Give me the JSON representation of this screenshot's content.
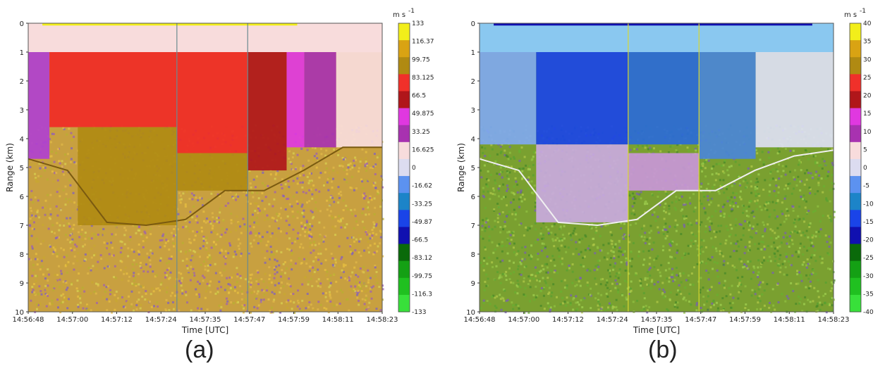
{
  "chart_data": [
    {
      "type": "heatmap",
      "caption": "(a)",
      "xlabel": "Time [UTC]",
      "ylabel": "Range (km)",
      "x_ticks": [
        "14:56:48",
        "14:57:00",
        "14:57:12",
        "14:57:24",
        "14:57:35",
        "14:57:47",
        "14:57:59",
        "14:58:11",
        "14:58:23"
      ],
      "y_ticks": [
        "0",
        "1",
        "2",
        "3",
        "4",
        "5",
        "6",
        "7",
        "8",
        "9",
        "10"
      ],
      "ylim": [
        10,
        0
      ],
      "colorbar": {
        "unit": "m s",
        "unit_exp": "-1",
        "labels": [
          "133",
          "116.37",
          "99.75",
          "83.125",
          "66.5",
          "49.875",
          "33.25",
          "16.625",
          "0",
          "-16.62",
          "-33.25",
          "-49.87",
          "-66.5",
          "-83.12",
          "-99.75",
          "-116.3",
          "-133"
        ],
        "colors": [
          "#f2ee1a",
          "#d9a313",
          "#b08a12",
          "#f0302a",
          "#b0161a",
          "#e038e0",
          "#a832b0",
          "#f8dcdc",
          "#dcdcf0",
          "#5c92f0",
          "#1c84c8",
          "#1a44e8",
          "#1010b0",
          "#0a6a0a",
          "#14a014",
          "#20c020",
          "#38e03a"
        ]
      },
      "regions": [
        {
          "t0": 0.0,
          "t1": 0.06,
          "r0": 1.0,
          "r1": 4.7,
          "color": "#b040d0"
        },
        {
          "t0": 0.06,
          "t1": 0.42,
          "r0": 1.0,
          "r1": 3.6,
          "color": "#f02a26"
        },
        {
          "t0": 0.14,
          "t1": 0.42,
          "r0": 3.6,
          "r1": 7.0,
          "color": "#b08a12"
        },
        {
          "t0": 0.42,
          "t1": 0.62,
          "r0": 1.0,
          "r1": 4.5,
          "color": "#f02a26"
        },
        {
          "t0": 0.42,
          "t1": 0.62,
          "r0": 4.5,
          "r1": 5.8,
          "color": "#b08a12"
        },
        {
          "t0": 0.62,
          "t1": 0.73,
          "r0": 1.0,
          "r1": 5.1,
          "color": "#b0161a"
        },
        {
          "t0": 0.73,
          "t1": 0.78,
          "r0": 1.0,
          "r1": 4.3,
          "color": "#e038e0"
        },
        {
          "t0": 0.78,
          "t1": 0.87,
          "r0": 1.0,
          "r1": 4.3,
          "color": "#a832b0"
        },
        {
          "t0": 0.87,
          "t1": 1.0,
          "r0": 1.0,
          "r1": 4.3,
          "color": "#f8dcdc"
        }
      ],
      "cloud_base_km": [
        4.7,
        5.1,
        6.9,
        7.0,
        6.8,
        5.8,
        5.8,
        5.1,
        4.3,
        4.3
      ]
    },
    {
      "type": "heatmap",
      "caption": "(b)",
      "xlabel": "Time [UTC]",
      "ylabel": "Range (km)",
      "x_ticks": [
        "14:56:48",
        "14:57:00",
        "14:57:12",
        "14:57:24",
        "14:57:35",
        "14:57:47",
        "14:57:59",
        "14:58:11",
        "14:58:23"
      ],
      "y_ticks": [
        "0",
        "1",
        "2",
        "3",
        "4",
        "5",
        "6",
        "7",
        "8",
        "9",
        "10"
      ],
      "ylim": [
        10,
        0
      ],
      "colorbar": {
        "unit": "m s",
        "unit_exp": "-1",
        "labels": [
          "40",
          "35",
          "30",
          "25",
          "20",
          "15",
          "10",
          "5",
          "0",
          "-5",
          "-10",
          "-15",
          "-20",
          "-25",
          "-30",
          "-35",
          "-40"
        ],
        "colors": [
          "#f2ee1a",
          "#d9a313",
          "#b08a12",
          "#f0302a",
          "#b0161a",
          "#e038e0",
          "#a832b0",
          "#f8dcdc",
          "#dcdcf0",
          "#5c92f0",
          "#1c84c8",
          "#1a44e8",
          "#1010b0",
          "#0a6a0a",
          "#14a014",
          "#20c020",
          "#38e03a"
        ]
      },
      "regions": [
        {
          "t0": 0.0,
          "t1": 0.16,
          "r0": 1.0,
          "r1": 4.2,
          "color": "#7fa8f0"
        },
        {
          "t0": 0.16,
          "t1": 0.42,
          "r0": 1.0,
          "r1": 4.2,
          "color": "#1a44e8"
        },
        {
          "t0": 0.16,
          "t1": 0.42,
          "r0": 4.2,
          "r1": 6.9,
          "color": "#c9a9e0"
        },
        {
          "t0": 0.42,
          "t1": 0.62,
          "r0": 1.0,
          "r1": 4.2,
          "color": "#2a6ad8"
        },
        {
          "t0": 0.42,
          "t1": 0.62,
          "r0": 4.5,
          "r1": 5.8,
          "color": "#c896d8"
        },
        {
          "t0": 0.62,
          "t1": 0.78,
          "r0": 1.0,
          "r1": 4.7,
          "color": "#4a86d8"
        },
        {
          "t0": 0.78,
          "t1": 1.0,
          "r0": 1.0,
          "r1": 4.3,
          "color": "#dde0f4"
        }
      ],
      "cloud_base_km": [
        4.7,
        5.1,
        6.9,
        7.0,
        6.8,
        5.8,
        5.8,
        5.1,
        4.6,
        4.4
      ]
    }
  ]
}
